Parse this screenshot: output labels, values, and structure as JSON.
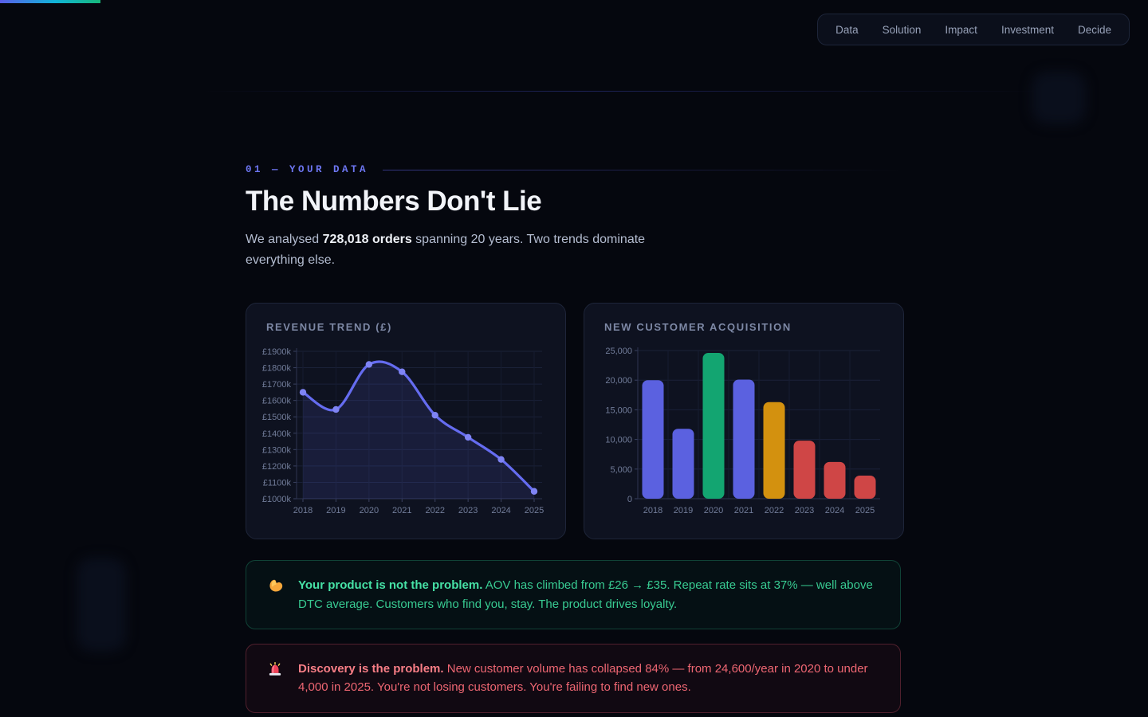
{
  "progress_bar": {
    "colors": [
      "#5a5ee9",
      "#10b4d8",
      "#17b87a"
    ]
  },
  "nav": {
    "items": [
      "Data",
      "Solution",
      "Impact",
      "Investment",
      "Decide"
    ]
  },
  "section": {
    "kicker": "01 — YOUR DATA",
    "title": "The Numbers Don't Lie",
    "intro_prefix": "We analysed ",
    "intro_bold": "728,018 orders",
    "intro_suffix": " spanning 20 years. Two trends dominate everything else."
  },
  "chart_data": [
    {
      "type": "line",
      "title": "REVENUE TREND (£)",
      "x": [
        2018,
        2019,
        2020,
        2021,
        2022,
        2023,
        2024,
        2025
      ],
      "values": [
        1650,
        1545,
        1820,
        1775,
        1510,
        1375,
        1240,
        1045
      ],
      "unit": "£k",
      "ylim": [
        1000,
        1900
      ],
      "ytick_step": 100,
      "ytick_labels": [
        "£1000k",
        "£1100k",
        "£1200k",
        "£1300k",
        "£1400k",
        "£1500k",
        "£1600k",
        "£1700k",
        "£1800k",
        "£1900k"
      ],
      "grid": true,
      "legend": "none",
      "line_color": "#656cf0",
      "point_color": "#7f84f4",
      "fill_color": "rgba(99,105,241,0.13)"
    },
    {
      "type": "bar",
      "title": "NEW CUSTOMER ACQUISITION",
      "categories": [
        "2018",
        "2019",
        "2020",
        "2021",
        "2022",
        "2023",
        "2024",
        "2025"
      ],
      "values": [
        20000,
        11800,
        24600,
        20100,
        16300,
        9800,
        6200,
        3900
      ],
      "bar_colors": [
        "#5b61e0",
        "#5b61e0",
        "#13a571",
        "#5b61e0",
        "#d3910f",
        "#cf4646",
        "#cf4646",
        "#cf4646"
      ],
      "ylim": [
        0,
        25000
      ],
      "ytick_step": 5000,
      "ytick_labels": [
        "0",
        "5,000",
        "10,000",
        "15,000",
        "20,000",
        "25,000"
      ],
      "grid": true,
      "legend": "none"
    }
  ],
  "callouts": [
    {
      "name": "product-strength-callout",
      "tone": "positive",
      "icon": "flex-icon",
      "bold": "Your product is not the problem.",
      "text": "AOV has climbed from £26 → £35. Repeat rate sits at 37% — well above DTC average. Customers who find you, stay. The product drives loyalty."
    },
    {
      "name": "discovery-problem-callout",
      "tone": "negative",
      "icon": "siren-icon",
      "bold": "Discovery is the problem.",
      "text": "New customer volume has collapsed 84% — from 24,600/year in 2020 to under 4,000 in 2025. You're not losing customers. You're failing to find new ones."
    }
  ]
}
